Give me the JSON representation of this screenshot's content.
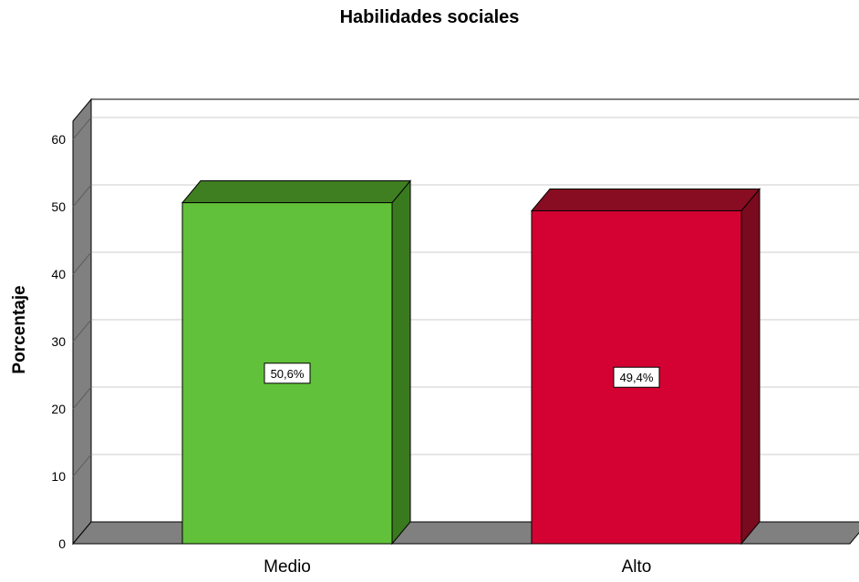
{
  "chart_data": {
    "type": "bar",
    "title": "Habilidades sociales",
    "xlabel": "",
    "ylabel": "Porcentaje",
    "ylim": [
      0,
      60
    ],
    "yticks": [
      0,
      10,
      20,
      30,
      40,
      50,
      60
    ],
    "grid": true,
    "style": "3d",
    "categories": [
      "Medio",
      "Alto"
    ],
    "values": [
      50.6,
      49.4
    ],
    "data_labels": [
      "50,6%",
      "49,4%"
    ],
    "bar_colors": [
      {
        "front": "#62c13a",
        "top": "#3f7f22",
        "side": "#3a7a1f"
      },
      {
        "front": "#d40232",
        "top": "#880d22",
        "side": "#7a0a1e"
      }
    ],
    "wall_color": "#808080",
    "gridline_color": "#d6d6d6"
  }
}
